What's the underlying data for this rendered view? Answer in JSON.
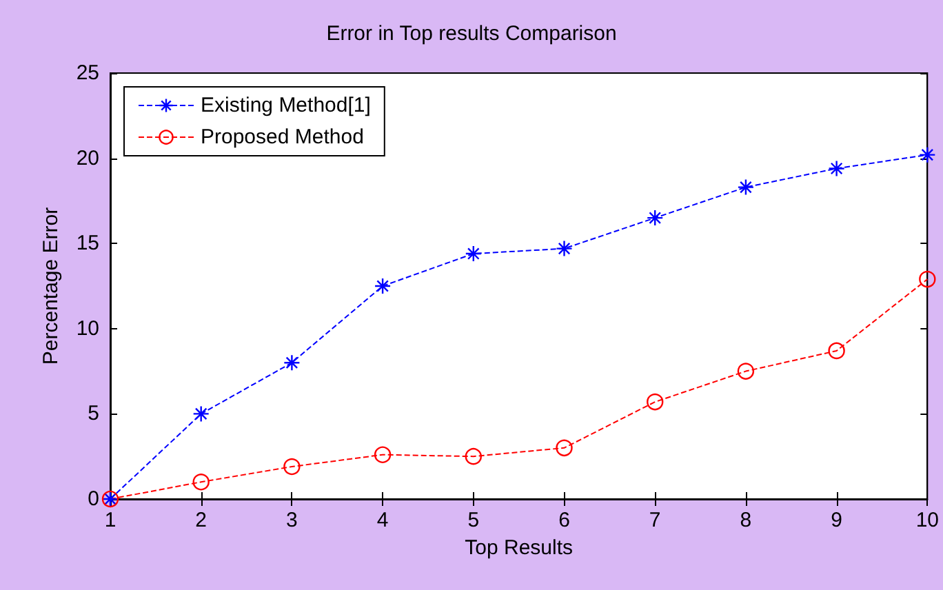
{
  "chart_data": {
    "type": "line",
    "title": "Error in Top results Comparison",
    "xlabel": "Top Results",
    "ylabel": "Percentage Error",
    "x": [
      1,
      2,
      3,
      4,
      5,
      6,
      7,
      8,
      9,
      10
    ],
    "series": [
      {
        "name": "Existing Method[1]",
        "color": "#0000ff",
        "marker": "cross",
        "values": [
          0,
          5,
          8,
          12.5,
          14.4,
          14.7,
          16.5,
          18.3,
          19.4,
          20.2
        ]
      },
      {
        "name": "Proposed Method",
        "color": "#ff0000",
        "marker": "circle",
        "values": [
          0,
          1,
          1.9,
          2.6,
          2.5,
          3,
          5.7,
          7.5,
          8.7,
          12.9
        ]
      }
    ],
    "xlim": [
      1,
      10
    ],
    "xticks": [
      1,
      2,
      3,
      4,
      5,
      6,
      7,
      8,
      9,
      10
    ],
    "ylim": [
      0,
      25
    ],
    "yticks": [
      0,
      5,
      10,
      15,
      20,
      25
    ],
    "grid": false,
    "legend": "top left",
    "line_style": "dashed"
  }
}
